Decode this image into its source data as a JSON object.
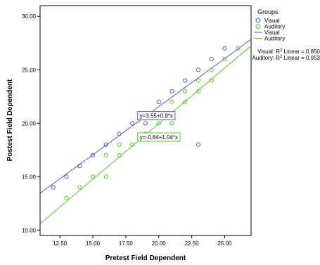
{
  "chart_data": {
    "type": "scatter",
    "xlabel": "Pretest Field Dependent",
    "ylabel": "Postest Field Dependent",
    "xlim": [
      11,
      27
    ],
    "ylim": [
      9.5,
      31
    ],
    "x_ticks": [
      "12.50",
      "15.00",
      "17.50",
      "20.00",
      "22.50",
      "25.00"
    ],
    "x_tick_values": [
      12.5,
      15,
      17.5,
      20,
      22.5,
      25
    ],
    "y_ticks": [
      "10.00",
      "15.00",
      "20.00",
      "25.00",
      "30.00"
    ],
    "y_tick_values": [
      10,
      15,
      20,
      25,
      30
    ],
    "grid": false,
    "legend": {
      "title": "Groups",
      "placement": "right",
      "entries": [
        {
          "label": "Visual",
          "kind": "marker",
          "color": "#5a5fb0"
        },
        {
          "label": "Auditory",
          "kind": "marker",
          "color": "#5fbf3f"
        },
        {
          "label": "Visual",
          "kind": "line",
          "color": "#5a5fb0"
        },
        {
          "label": "Auditory",
          "kind": "line",
          "color": "#5fbf3f"
        }
      ],
      "r2_lines": [
        {
          "prefix": "Visual: R",
          "suffix": " Linear = 0.850"
        },
        {
          "prefix": "Auditory: R",
          "suffix": " Linear = 0.953"
        }
      ]
    },
    "series": [
      {
        "name": "Visual",
        "color": "#5a5fb0",
        "points": [
          [
            12,
            14
          ],
          [
            13,
            15
          ],
          [
            14,
            16
          ],
          [
            15,
            17
          ],
          [
            16,
            18
          ],
          [
            17,
            19
          ],
          [
            18,
            20
          ],
          [
            19,
            20
          ],
          [
            20,
            22
          ],
          [
            21,
            23
          ],
          [
            22,
            24
          ],
          [
            23,
            25
          ],
          [
            23,
            18
          ],
          [
            24,
            26
          ],
          [
            25,
            27
          ]
        ],
        "fit": {
          "intercept": 3.55,
          "slope": 0.9,
          "equation": "y=3.55+0.9*x",
          "label_x": 18.4,
          "label_y": 21.1
        }
      },
      {
        "name": "Auditory",
        "color": "#5fbf3f",
        "points": [
          [
            13,
            13
          ],
          [
            14,
            14
          ],
          [
            15,
            15
          ],
          [
            16,
            15
          ],
          [
            16,
            17
          ],
          [
            17,
            17
          ],
          [
            17,
            18
          ],
          [
            18,
            18
          ],
          [
            19,
            19
          ],
          [
            20,
            20
          ],
          [
            21,
            20
          ],
          [
            21,
            22
          ],
          [
            22,
            22
          ],
          [
            22,
            23
          ],
          [
            23,
            23
          ],
          [
            23,
            24
          ],
          [
            24,
            24
          ],
          [
            24,
            25
          ],
          [
            25,
            26
          ],
          [
            26,
            27
          ]
        ],
        "fit": {
          "intercept": -0.84,
          "slope": 1.04,
          "equation": "y=-0.84+1.04*x",
          "label_x": 18.4,
          "label_y": 19.1
        }
      }
    ]
  }
}
